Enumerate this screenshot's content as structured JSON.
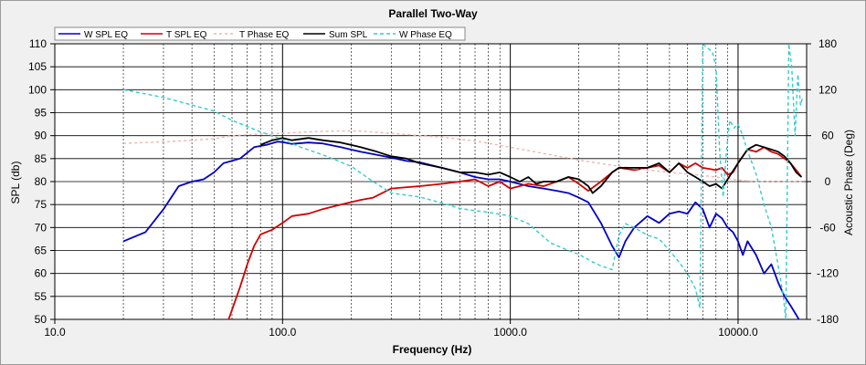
{
  "chart_data": {
    "type": "line",
    "title": "Parallel Two-Way",
    "xlabel": "Frequency (Hz)",
    "ylabel": "SPL (db)",
    "y2label": "Acoustic Phase (Deg)",
    "xscale": "log",
    "xlim": [
      10,
      20000
    ],
    "ylim": [
      50,
      110
    ],
    "y2lim": [
      -180,
      180
    ],
    "grid": true,
    "legend": "top",
    "x_ticks": [
      {
        "value": 10,
        "label": "10.0"
      },
      {
        "value": 100,
        "label": "100.0"
      },
      {
        "value": 1000,
        "label": "1000.0"
      },
      {
        "value": 10000,
        "label": "10000.0"
      }
    ],
    "y_ticks": [
      "110",
      "105",
      "100",
      "95",
      "90",
      "85",
      "80",
      "75",
      "70",
      "65",
      "60",
      "55",
      "50"
    ],
    "y2_ticks": [
      "180",
      "120",
      "60",
      "0",
      "-60",
      "-120",
      "-180"
    ],
    "series": [
      {
        "name": "W SPL EQ",
        "color": "#0000c8",
        "axis": "left",
        "points": [
          [
            20,
            67
          ],
          [
            25,
            69
          ],
          [
            30,
            74
          ],
          [
            35,
            79
          ],
          [
            40,
            80
          ],
          [
            45,
            80.5
          ],
          [
            50,
            82
          ],
          [
            55,
            84
          ],
          [
            65,
            85
          ],
          [
            75,
            87.5
          ],
          [
            85,
            88
          ],
          [
            95,
            88.7
          ],
          [
            100,
            88.6
          ],
          [
            110,
            88.2
          ],
          [
            130,
            88.5
          ],
          [
            150,
            88.3
          ],
          [
            180,
            87.5
          ],
          [
            220,
            86.5
          ],
          [
            260,
            85.8
          ],
          [
            300,
            85.2
          ],
          [
            350,
            84.5
          ],
          [
            400,
            84.2
          ],
          [
            500,
            83
          ],
          [
            600,
            82
          ],
          [
            700,
            81
          ],
          [
            800,
            80.5
          ],
          [
            900,
            80.5
          ],
          [
            1000,
            80
          ],
          [
            1200,
            79
          ],
          [
            1400,
            78.5
          ],
          [
            1600,
            78
          ],
          [
            1800,
            77.5
          ],
          [
            2000,
            76.5
          ],
          [
            2200,
            75.5
          ],
          [
            2500,
            71
          ],
          [
            2800,
            66
          ],
          [
            3000,
            63.5
          ],
          [
            3200,
            67
          ],
          [
            3500,
            70
          ],
          [
            4000,
            72.5
          ],
          [
            4500,
            71
          ],
          [
            5000,
            73
          ],
          [
            5500,
            73.5
          ],
          [
            6000,
            73
          ],
          [
            6500,
            75.5
          ],
          [
            7000,
            74
          ],
          [
            7500,
            70
          ],
          [
            8000,
            73
          ],
          [
            8500,
            72
          ],
          [
            9000,
            70
          ],
          [
            9500,
            69
          ],
          [
            10000,
            67
          ],
          [
            10500,
            64
          ],
          [
            11000,
            67
          ],
          [
            12000,
            64
          ],
          [
            13000,
            60
          ],
          [
            14000,
            62
          ],
          [
            15000,
            58
          ],
          [
            16000,
            55
          ],
          [
            17000,
            53
          ],
          [
            18000,
            51
          ],
          [
            19000,
            49
          ]
        ]
      },
      {
        "name": "T SPL EQ",
        "color": "#d20000",
        "axis": "left",
        "points": [
          [
            58,
            50
          ],
          [
            65,
            57
          ],
          [
            70,
            62
          ],
          [
            75,
            66
          ],
          [
            80,
            68.5
          ],
          [
            90,
            69.5
          ],
          [
            100,
            71
          ],
          [
            110,
            72.5
          ],
          [
            130,
            73
          ],
          [
            150,
            74
          ],
          [
            180,
            75
          ],
          [
            220,
            76
          ],
          [
            250,
            76.5
          ],
          [
            300,
            78.5
          ],
          [
            400,
            79
          ],
          [
            500,
            79.5
          ],
          [
            600,
            80
          ],
          [
            700,
            80.5
          ],
          [
            800,
            79
          ],
          [
            900,
            80
          ],
          [
            1000,
            78.5
          ],
          [
            1200,
            79.5
          ],
          [
            1400,
            79
          ],
          [
            1600,
            80
          ],
          [
            1800,
            81
          ],
          [
            2000,
            79.5
          ],
          [
            2200,
            78
          ],
          [
            2500,
            80
          ],
          [
            2800,
            82
          ],
          [
            3000,
            83
          ],
          [
            3500,
            82.5
          ],
          [
            4000,
            83
          ],
          [
            4500,
            83.5
          ],
          [
            5000,
            82
          ],
          [
            5500,
            84
          ],
          [
            6000,
            83
          ],
          [
            6500,
            84
          ],
          [
            7000,
            83
          ],
          [
            8000,
            82.5
          ],
          [
            8500,
            83
          ],
          [
            9000,
            81.5
          ],
          [
            9500,
            82
          ],
          [
            10000,
            84
          ],
          [
            11000,
            87
          ],
          [
            12000,
            86.5
          ],
          [
            13000,
            87.5
          ],
          [
            14000,
            86.5
          ],
          [
            15000,
            86
          ],
          [
            16000,
            85
          ],
          [
            17000,
            84
          ],
          [
            18000,
            82.5
          ],
          [
            19000,
            81
          ]
        ]
      },
      {
        "name": "T Phase EQ",
        "color": "#f0b4b4",
        "axis": "right",
        "points": [
          [
            20,
            50
          ],
          [
            30,
            52
          ],
          [
            40,
            54
          ],
          [
            50,
            56
          ],
          [
            60,
            60
          ],
          [
            80,
            62
          ],
          [
            100,
            63
          ],
          [
            130,
            65
          ],
          [
            170,
            66
          ],
          [
            220,
            66
          ],
          [
            300,
            63
          ],
          [
            400,
            60
          ],
          [
            500,
            58
          ],
          [
            700,
            53
          ],
          [
            1000,
            45
          ],
          [
            1500,
            35
          ],
          [
            2000,
            28
          ],
          [
            3000,
            20
          ],
          [
            4000,
            15
          ],
          [
            5000,
            12
          ],
          [
            6000,
            10
          ],
          [
            7000,
            8
          ],
          [
            8000,
            6
          ],
          [
            9000,
            4
          ],
          [
            10000,
            2
          ],
          [
            12000,
            0
          ],
          [
            15000,
            0
          ],
          [
            19000,
            0
          ]
        ]
      },
      {
        "name": "Sum SPL",
        "color": "#000000",
        "axis": "left",
        "points": [
          [
            80,
            88
          ],
          [
            90,
            89
          ],
          [
            100,
            89.5
          ],
          [
            110,
            89
          ],
          [
            130,
            89.5
          ],
          [
            150,
            89
          ],
          [
            180,
            88.5
          ],
          [
            220,
            87.5
          ],
          [
            260,
            86.5
          ],
          [
            300,
            85.5
          ],
          [
            350,
            85
          ],
          [
            400,
            84
          ],
          [
            500,
            83
          ],
          [
            600,
            82
          ],
          [
            700,
            82
          ],
          [
            800,
            81.5
          ],
          [
            900,
            82
          ],
          [
            1000,
            81
          ],
          [
            1100,
            80
          ],
          [
            1200,
            81
          ],
          [
            1300,
            79.5
          ],
          [
            1400,
            80
          ],
          [
            1600,
            80
          ],
          [
            1800,
            81
          ],
          [
            2000,
            80.5
          ],
          [
            2200,
            79
          ],
          [
            2300,
            77.5
          ],
          [
            2500,
            79
          ],
          [
            2800,
            82
          ],
          [
            3000,
            83
          ],
          [
            3500,
            83
          ],
          [
            4000,
            83
          ],
          [
            4500,
            84
          ],
          [
            5000,
            82
          ],
          [
            5500,
            84
          ],
          [
            6000,
            82
          ],
          [
            6500,
            81
          ],
          [
            7000,
            80
          ],
          [
            7500,
            79
          ],
          [
            8000,
            79.5
          ],
          [
            8500,
            78.5
          ],
          [
            9000,
            80.5
          ],
          [
            10000,
            84
          ],
          [
            11000,
            87
          ],
          [
            12000,
            88
          ],
          [
            13000,
            87.5
          ],
          [
            14000,
            87
          ],
          [
            15000,
            86.5
          ],
          [
            16000,
            85.5
          ],
          [
            17000,
            84
          ],
          [
            18000,
            82
          ],
          [
            19000,
            81
          ]
        ]
      },
      {
        "name": "W Phase EQ",
        "color": "#33cccc",
        "axis": "right",
        "points": [
          [
            20,
            120
          ],
          [
            30,
            110
          ],
          [
            40,
            100
          ],
          [
            50,
            92
          ],
          [
            60,
            80
          ],
          [
            70,
            72
          ],
          [
            80,
            65
          ],
          [
            90,
            60
          ],
          [
            100,
            55
          ],
          [
            120,
            45
          ],
          [
            150,
            35
          ],
          [
            200,
            20
          ],
          [
            250,
            0
          ],
          [
            300,
            -15
          ],
          [
            400,
            -20
          ],
          [
            500,
            -28
          ],
          [
            600,
            -35
          ],
          [
            700,
            -38
          ],
          [
            800,
            -40
          ],
          [
            1000,
            -45
          ],
          [
            1200,
            -55
          ],
          [
            1500,
            -80
          ],
          [
            1800,
            -90
          ],
          [
            2000,
            -95
          ],
          [
            2300,
            -105
          ],
          [
            2500,
            -110
          ],
          [
            2800,
            -115
          ],
          [
            3000,
            -70
          ],
          [
            3200,
            -55
          ],
          [
            3500,
            -60
          ],
          [
            4000,
            -70
          ],
          [
            4500,
            -75
          ],
          [
            5000,
            -90
          ],
          [
            5500,
            -105
          ],
          [
            6000,
            -120
          ],
          [
            6500,
            -140
          ],
          [
            6800,
            -165
          ],
          [
            7000,
            180
          ],
          [
            7300,
            175
          ],
          [
            7700,
            170
          ],
          [
            8000,
            150
          ],
          [
            8300,
            40
          ],
          [
            8600,
            -20
          ],
          [
            8900,
            40
          ],
          [
            9200,
            80
          ],
          [
            9600,
            70
          ],
          [
            10000,
            75
          ],
          [
            10500,
            60
          ],
          [
            11000,
            40
          ],
          [
            12000,
            10
          ],
          [
            13000,
            -30
          ],
          [
            14000,
            -60
          ],
          [
            15000,
            -110
          ],
          [
            15800,
            -150
          ],
          [
            16200,
            -180
          ],
          [
            16700,
            180
          ],
          [
            17200,
            150
          ],
          [
            17800,
            60
          ],
          [
            18300,
            140
          ],
          [
            18800,
            100
          ],
          [
            19200,
            110
          ]
        ]
      }
    ]
  }
}
